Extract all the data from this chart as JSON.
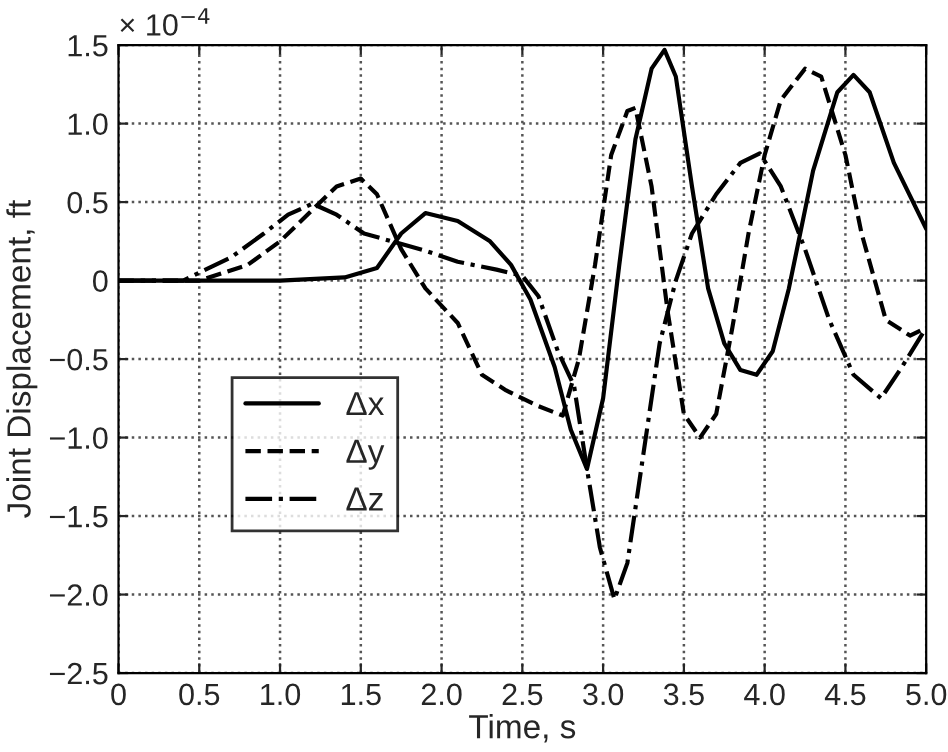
{
  "chart_data": {
    "type": "line",
    "xlabel": "Time, s",
    "ylabel": "Joint Displacement, ft",
    "annotations": [
      "× 10$^{−4}$"
    ],
    "xlim": [
      0,
      5
    ],
    "ylim": [
      -2.5,
      1.5
    ],
    "xticks": [
      0,
      0.5,
      {
        "value": 1,
        "label": "1.0"
      },
      1.5,
      {
        "value": 2,
        "label": "2.0"
      },
      2.5,
      {
        "value": 3,
        "label": "3.0"
      },
      3.5,
      {
        "value": 4,
        "label": "4.0"
      },
      4.5,
      {
        "value": 5,
        "label": "5.0"
      }
    ],
    "yticks": [
      {
        "value": -2.5,
        "label": "−2.5"
      },
      {
        "value": -2,
        "label": "−2.0"
      },
      {
        "value": -1.5,
        "label": "−1.5"
      },
      {
        "value": -1,
        "label": "−1.0"
      },
      {
        "value": -0.5,
        "label": "−0.5"
      },
      0,
      0.5,
      {
        "value": 1,
        "label": "1.0"
      },
      1.5
    ],
    "grid": true,
    "legend": "bottom left",
    "series": [
      {
        "name": "Δx",
        "color": "#000000",
        "line_style": "solid",
        "x": [
          0,
          1.0,
          1.4,
          1.6,
          1.75,
          1.9,
          2.1,
          2.3,
          2.43,
          2.55,
          2.7,
          2.8,
          2.9,
          3.0,
          3.1,
          3.2,
          3.3,
          3.38,
          3.45,
          3.55,
          3.65,
          3.75,
          3.85,
          3.95,
          4.05,
          4.15,
          4.3,
          4.45,
          4.55,
          4.65,
          4.8,
          5.0
        ],
        "values": [
          0,
          0,
          0.02,
          0.08,
          0.3,
          0.43,
          0.38,
          0.25,
          0.1,
          -0.12,
          -0.55,
          -0.95,
          -1.2,
          -0.75,
          0.1,
          0.9,
          1.35,
          1.47,
          1.3,
          0.6,
          -0.05,
          -0.4,
          -0.57,
          -0.6,
          -0.45,
          -0.05,
          0.7,
          1.2,
          1.31,
          1.2,
          0.75,
          0.33
        ]
      },
      {
        "name": "Δy",
        "color": "#000000",
        "line_style": "dashed",
        "x": [
          0,
          0.5,
          0.8,
          1.0,
          1.2,
          1.35,
          1.5,
          1.6,
          1.75,
          1.9,
          2.1,
          2.25,
          2.4,
          2.6,
          2.75,
          2.85,
          2.95,
          3.05,
          3.15,
          3.2,
          3.3,
          3.4,
          3.5,
          3.6,
          3.7,
          3.8,
          3.9,
          4.0,
          4.1,
          4.25,
          4.35,
          4.5,
          4.6,
          4.75,
          4.9,
          5.0
        ],
        "values": [
          0,
          0,
          0.1,
          0.25,
          0.45,
          0.6,
          0.65,
          0.55,
          0.2,
          -0.05,
          -0.27,
          -0.6,
          -0.7,
          -0.8,
          -0.86,
          -0.5,
          0.1,
          0.8,
          1.08,
          1.1,
          0.6,
          -0.2,
          -0.85,
          -1.0,
          -0.85,
          -0.3,
          0.3,
          0.8,
          1.15,
          1.35,
          1.3,
          0.8,
          0.3,
          -0.25,
          -0.35,
          -0.3
        ]
      },
      {
        "name": "Δz",
        "color": "#000000",
        "line_style": "dashdot",
        "x": [
          0,
          0.4,
          0.7,
          0.9,
          1.05,
          1.2,
          1.35,
          1.52,
          1.9,
          2.1,
          2.34,
          2.5,
          2.6,
          2.72,
          2.82,
          2.9,
          2.98,
          3.07,
          3.15,
          3.25,
          3.35,
          3.45,
          3.55,
          3.7,
          3.85,
          3.97,
          4.1,
          4.25,
          4.4,
          4.55,
          4.72,
          4.85,
          5.0
        ],
        "values": [
          0,
          0,
          0.15,
          0.3,
          0.42,
          0.49,
          0.42,
          0.3,
          0.19,
          0.12,
          0.07,
          0.03,
          -0.1,
          -0.45,
          -0.67,
          -1.2,
          -1.7,
          -2.03,
          -1.8,
          -1.1,
          -0.4,
          0.0,
          0.3,
          0.55,
          0.75,
          0.81,
          0.6,
          0.2,
          -0.25,
          -0.6,
          -0.75,
          -0.55,
          -0.3
        ]
      }
    ]
  }
}
